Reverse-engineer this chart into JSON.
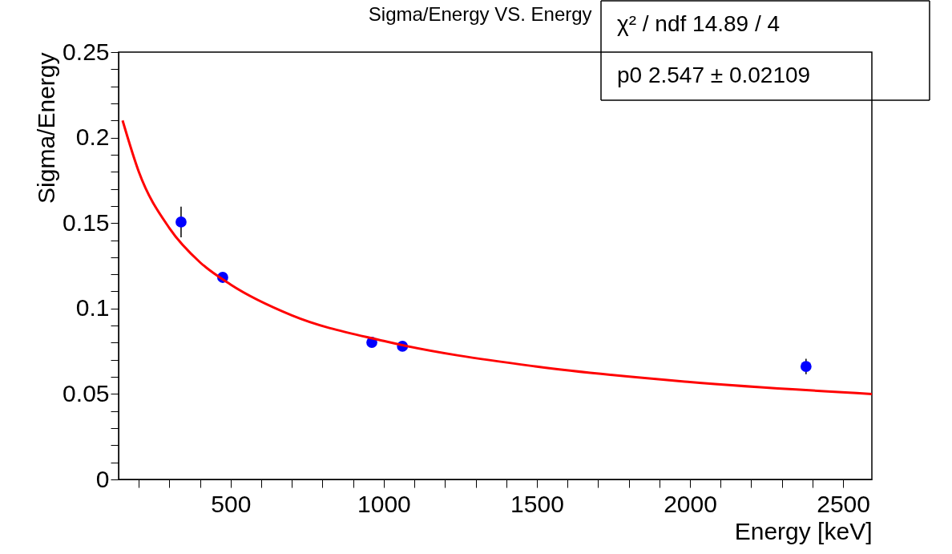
{
  "chart_data": {
    "type": "scatter",
    "title": "Sigma/Energy VS. Energy",
    "xlabel": "Energy [keV]",
    "ylabel": "Sigma/Energy",
    "annotations": [
      "χ² / ndf   14.89 / 4",
      "p0   2.547 ± 0.02109"
    ],
    "xlim": [
      134,
      2594
    ],
    "xticks": [
      {
        "value": 200,
        "label": null
      },
      {
        "value": 300,
        "label": null
      },
      {
        "value": 400,
        "label": null
      },
      500,
      {
        "value": 600,
        "label": null
      },
      {
        "value": 700,
        "label": null
      },
      {
        "value": 800,
        "label": null
      },
      {
        "value": 900,
        "label": null
      },
      1000,
      {
        "value": 1100,
        "label": null
      },
      {
        "value": 1200,
        "label": null
      },
      {
        "value": 1300,
        "label": null
      },
      {
        "value": 1400,
        "label": null
      },
      1500,
      {
        "value": 1600,
        "label": null
      },
      {
        "value": 1700,
        "label": null
      },
      {
        "value": 1800,
        "label": null
      },
      {
        "value": 1900,
        "label": null
      },
      2000,
      {
        "value": 2100,
        "label": null
      },
      {
        "value": 2200,
        "label": null
      },
      {
        "value": 2300,
        "label": null
      },
      {
        "value": 2400,
        "label": null
      },
      2500
    ],
    "ylim": [
      0,
      0.25
    ],
    "yticks": [
      0,
      {
        "value": 0.01,
        "label": null
      },
      {
        "value": 0.02,
        "label": null
      },
      {
        "value": 0.03,
        "label": null
      },
      {
        "value": 0.04,
        "label": null
      },
      0.05,
      {
        "value": 0.06,
        "label": null
      },
      {
        "value": 0.07,
        "label": null
      },
      {
        "value": 0.08,
        "label": null
      },
      {
        "value": 0.09,
        "label": null
      },
      0.1,
      {
        "value": 0.11,
        "label": null
      },
      {
        "value": 0.12,
        "label": null
      },
      {
        "value": 0.13,
        "label": null
      },
      {
        "value": 0.14,
        "label": null
      },
      0.15,
      {
        "value": 0.16,
        "label": null
      },
      {
        "value": 0.17,
        "label": null
      },
      {
        "value": 0.18,
        "label": null
      },
      {
        "value": 0.19,
        "label": null
      },
      0.2,
      {
        "value": 0.21,
        "label": null
      },
      {
        "value": 0.22,
        "label": null
      },
      {
        "value": 0.23,
        "label": null
      },
      {
        "value": 0.24,
        "label": null
      },
      0.25
    ],
    "grid": false,
    "marker": "circle",
    "series": [
      {
        "color": "#0000ff",
        "x": [
          338,
          474,
          961,
          1061,
          2379
        ],
        "values": [
          0.1506,
          0.1182,
          0.0802,
          0.0779,
          0.0661
        ],
        "errors": [
          0.009,
          null,
          null,
          null,
          0.0045
        ]
      },
      {
        "type": "line",
        "marker": "none",
        "color": "#ff0000",
        "x": [
          147,
          200,
          300,
          400,
          500,
          700,
          1000,
          1500,
          2000,
          2594
        ],
        "values": [
          0.21,
          0.18,
          0.147,
          0.127,
          0.114,
          0.096,
          0.081,
          0.066,
          0.057,
          0.05
        ]
      }
    ]
  }
}
